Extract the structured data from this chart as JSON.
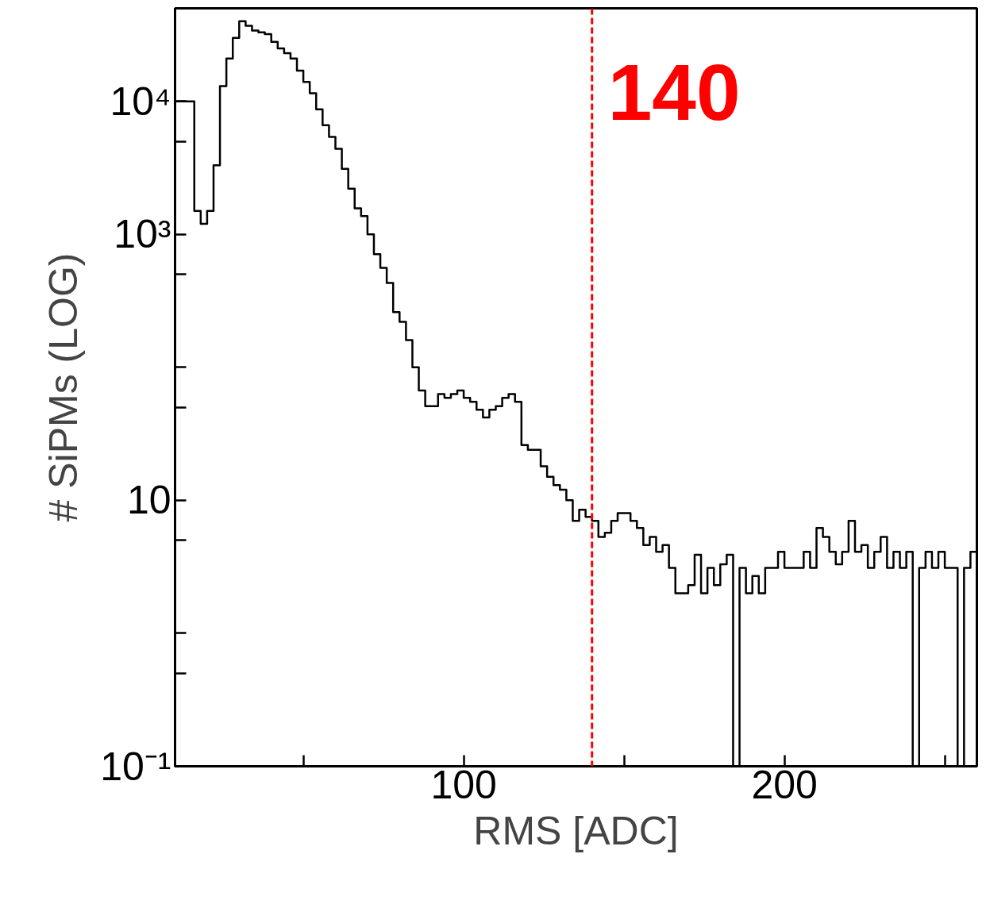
{
  "chart_data": {
    "type": "histogram",
    "xlabel": "RMS [ADC]",
    "ylabel": "# SiPMs (LOG)",
    "log": true,
    "grid": false,
    "color": "#000000",
    "bins": [
      10,
      12,
      14,
      16,
      18,
      20,
      22,
      24,
      26,
      28,
      30,
      32,
      34,
      36,
      38,
      40,
      42,
      44,
      46,
      48,
      50,
      52,
      54,
      56,
      58,
      60,
      62,
      64,
      66,
      68,
      70,
      72,
      74,
      76,
      78,
      80,
      82,
      84,
      86,
      88,
      90,
      92,
      94,
      96,
      98,
      100,
      102,
      104,
      106,
      108,
      110,
      112,
      114,
      116,
      118,
      120,
      122,
      124,
      126,
      128,
      130,
      132,
      134,
      136,
      138,
      140,
      142,
      144,
      146,
      148,
      150,
      152,
      154,
      156,
      158,
      160,
      162,
      164,
      166,
      168,
      170,
      172,
      174,
      176,
      178,
      180,
      182,
      184,
      186,
      188,
      190,
      192,
      194,
      196,
      198,
      200,
      202,
      204,
      206,
      208,
      210,
      212,
      214,
      216,
      218,
      220,
      222,
      224,
      226,
      228,
      230,
      232,
      234,
      236,
      238,
      240,
      242,
      244,
      246,
      248,
      250,
      252,
      254,
      256,
      258,
      260
    ],
    "values": [
      10000,
      10000,
      10000,
      1500,
      1200,
      1500,
      3300,
      13000,
      21000,
      30000,
      40000,
      37000,
      34000,
      33000,
      32000,
      28000,
      25000,
      23000,
      21000,
      17000,
      14000,
      11500,
      8700,
      6600,
      5400,
      4400,
      3100,
      2200,
      1570,
      1370,
      1000,
      710,
      560,
      430,
      260,
      220,
      160,
      100,
      67,
      51,
      51,
      63,
      59,
      63,
      67,
      59,
      55,
      48,
      42,
      48,
      51,
      59,
      63,
      55,
      26,
      24,
      24,
      18,
      15,
      13,
      12,
      10,
      7,
      8.5,
      7.5,
      7,
      5.3,
      5.7,
      7,
      8,
      8,
      7,
      6.2,
      4.6,
      5.3,
      4.1,
      4.6,
      3.1,
      2,
      2,
      2.3,
      3.9,
      2,
      3.1,
      2.3,
      3.3,
      3.9,
      0.1,
      3.1,
      2,
      2.7,
      2,
      3.1,
      3.1,
      4.1,
      3.1,
      3.1,
      3.1,
      4.1,
      3.1,
      6.2,
      5.3,
      4.1,
      3.3,
      4.1,
      7,
      4.1,
      4.6,
      3.1,
      4.1,
      5.3,
      3.1,
      4.1,
      3.1,
      4.1,
      0.1,
      3.1,
      4.1,
      3.1,
      4.1,
      3.1,
      3.1,
      0.1,
      3.1,
      4.1
    ],
    "xlim": [
      10,
      260
    ],
    "xticks": [
      {
        "value": 50,
        "label": null
      },
      100,
      {
        "value": 150,
        "label": null
      },
      200,
      {
        "value": 250,
        "label": null
      }
    ],
    "ylim": [
      0.1,
      50000
    ],
    "yticks": [
      {
        "value": 0.1,
        "label": "10⁻¹"
      },
      {
        "value": 0.5,
        "label": null
      },
      {
        "value": 1,
        "label": null
      },
      {
        "value": 5,
        "label": null
      },
      10,
      {
        "value": 50,
        "label": null
      },
      {
        "value": 100,
        "label": null
      },
      {
        "value": 500,
        "label": null
      },
      {
        "value": 1000,
        "label": "10³"
      },
      {
        "value": 5000,
        "label": null
      },
      {
        "value": 10000,
        "label": "10⁴"
      }
    ],
    "ref_lines": [
      {
        "axis": "x",
        "value": 140,
        "label": "140",
        "color": "#ff0000",
        "line_style": "dashed"
      }
    ]
  }
}
